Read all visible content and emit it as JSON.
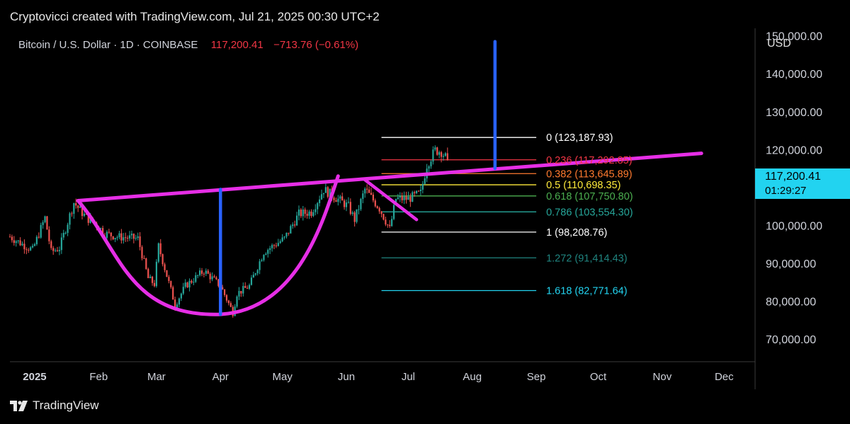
{
  "header": {
    "credit": "Cryptovicci created with TradingView.com, Jul 21, 2025 00:30 UTC+2",
    "symbol": "Bitcoin / U.S. Dollar · 1D · COINBASE",
    "last_price": "117,200.41",
    "change": "−713.76 (−0.61%)"
  },
  "axis_currency": "USD",
  "price_tag": {
    "price": "117,200.41",
    "countdown": "01:29:27",
    "color": "#22d3f0"
  },
  "footer": {
    "logo_text": "TradingView",
    "logo_icon": "tradingview-logo-icon"
  },
  "colors": {
    "up": "#26a69a",
    "down": "#ef5350",
    "pattern": "#e62ee6",
    "target": "#2962ff",
    "axis_text": "#d1d4dc",
    "background": "#000000"
  },
  "chart_data": {
    "type": "candlestick",
    "title": "Bitcoin / U.S. Dollar · 1D · COINBASE",
    "y_range": [
      64000,
      152000
    ],
    "y_ticks": [
      {
        "value": 150000,
        "label": "150,000.00"
      },
      {
        "value": 140000,
        "label": "140,000.00"
      },
      {
        "value": 130000,
        "label": "130,000.00"
      },
      {
        "value": 120000,
        "label": "120,000.00"
      },
      {
        "value": 110000,
        "label": "110,000.00"
      },
      {
        "value": 100000,
        "label": "100,000.00"
      },
      {
        "value": 90000,
        "label": "90,000.00"
      },
      {
        "value": 80000,
        "label": "80,000.00"
      },
      {
        "value": 70000,
        "label": "70,000.00"
      }
    ],
    "x_range": [
      "2024-12-20",
      "2025-12-16"
    ],
    "x_ticks": [
      {
        "date": "2025-01-01",
        "label": "2025",
        "bold": true
      },
      {
        "date": "2025-02-01",
        "label": "Feb"
      },
      {
        "date": "2025-03-01",
        "label": "Mar"
      },
      {
        "date": "2025-04-01",
        "label": "Apr"
      },
      {
        "date": "2025-05-01",
        "label": "May"
      },
      {
        "date": "2025-06-01",
        "label": "Jun"
      },
      {
        "date": "2025-07-01",
        "label": "Jul"
      },
      {
        "date": "2025-08-01",
        "label": "Aug"
      },
      {
        "date": "2025-09-01",
        "label": "Sep"
      },
      {
        "date": "2025-10-01",
        "label": "Oct"
      },
      {
        "date": "2025-11-01",
        "label": "Nov"
      },
      {
        "date": "2025-12-01",
        "label": "Dec"
      }
    ],
    "close_series": {
      "start": "2024-12-20",
      "end": "2025-07-20",
      "anchors": [
        [
          "2024-12-20",
          97000
        ],
        [
          "2024-12-26",
          95000
        ],
        [
          "2024-12-31",
          93500
        ],
        [
          "2025-01-06",
          102000
        ],
        [
          "2025-01-09",
          93000
        ],
        [
          "2025-01-13",
          94000
        ],
        [
          "2025-01-20",
          106000
        ],
        [
          "2025-01-26",
          102000
        ],
        [
          "2025-02-01",
          100000
        ],
        [
          "2025-02-03",
          98000
        ],
        [
          "2025-02-10",
          97000
        ],
        [
          "2025-02-20",
          96500
        ],
        [
          "2025-02-25",
          86000
        ],
        [
          "2025-02-28",
          84500
        ],
        [
          "2025-03-02",
          94500
        ],
        [
          "2025-03-10",
          79000
        ],
        [
          "2025-03-15",
          84000
        ],
        [
          "2025-03-24",
          88000
        ],
        [
          "2025-04-01",
          84000
        ],
        [
          "2025-04-07",
          77000
        ],
        [
          "2025-04-09",
          82000
        ],
        [
          "2025-04-15",
          84000
        ],
        [
          "2025-04-22",
          93000
        ],
        [
          "2025-05-02",
          96500
        ],
        [
          "2025-05-09",
          103000
        ],
        [
          "2025-05-15",
          103500
        ],
        [
          "2025-05-21",
          109500
        ],
        [
          "2025-05-25",
          108000
        ],
        [
          "2025-06-02",
          105000
        ],
        [
          "2025-06-05",
          101500
        ],
        [
          "2025-06-10",
          109500
        ],
        [
          "2025-06-17",
          104500
        ],
        [
          "2025-06-22",
          99000
        ],
        [
          "2025-06-25",
          107000
        ],
        [
          "2025-07-01",
          107000
        ],
        [
          "2025-07-07",
          108500
        ],
        [
          "2025-07-10",
          116000
        ],
        [
          "2025-07-14",
          119800
        ],
        [
          "2025-07-17",
          119500
        ],
        [
          "2025-07-20",
          117200
        ]
      ]
    },
    "fib_start": "2025-06-18",
    "fib_end": "2025-09-01",
    "fib_levels": [
      {
        "ratio": "0",
        "price": 123187.93,
        "label": "0 (123,187.93)",
        "color": "#ffffff"
      },
      {
        "ratio": "0.236",
        "price": 117292.85,
        "label": "0.236 (117,292.85)",
        "color": "#f23645"
      },
      {
        "ratio": "0.382",
        "price": 113645.89,
        "label": "0.382 (113,645.89)",
        "color": "#ff7a2f"
      },
      {
        "ratio": "0.5",
        "price": 110698.35,
        "label": "0.5 (110,698.35)",
        "color": "#ffeb3b"
      },
      {
        "ratio": "0.618",
        "price": 107750.8,
        "label": "0.618 (107,750.80)",
        "color": "#4caf50"
      },
      {
        "ratio": "0.786",
        "price": 103554.3,
        "label": "0.786 (103,554.30)",
        "color": "#26a69a"
      },
      {
        "ratio": "1",
        "price": 98208.76,
        "label": "1 (98,208.76)",
        "color": "#ffffff"
      },
      {
        "ratio": "1.272",
        "price": 91414.43,
        "label": "1.272 (91,414.43)",
        "color": "#208580"
      },
      {
        "ratio": "1.618",
        "price": 82771.64,
        "label": "1.618 (82,771.64)",
        "color": "#22d3f0"
      }
    ],
    "annotations": {
      "neckline": [
        [
          "2025-01-22",
          106500
        ],
        [
          "2025-11-20",
          119000
        ]
      ],
      "cup_start": [
        "2025-01-22",
        106500
      ],
      "cup_bottom": [
        "2025-04-01",
        76500
      ],
      "cup_end": [
        "2025-05-28",
        113000
      ],
      "handle": [
        [
          "2025-06-10",
          112000
        ],
        [
          "2025-07-05",
          101500
        ]
      ],
      "cup_depth_line": [
        [
          "2025-04-01",
          109500
        ],
        [
          "2025-04-01",
          76500
        ]
      ],
      "target_line": [
        [
          "2025-08-12",
          115000
        ],
        [
          "2025-08-12",
          148500
        ]
      ]
    }
  }
}
